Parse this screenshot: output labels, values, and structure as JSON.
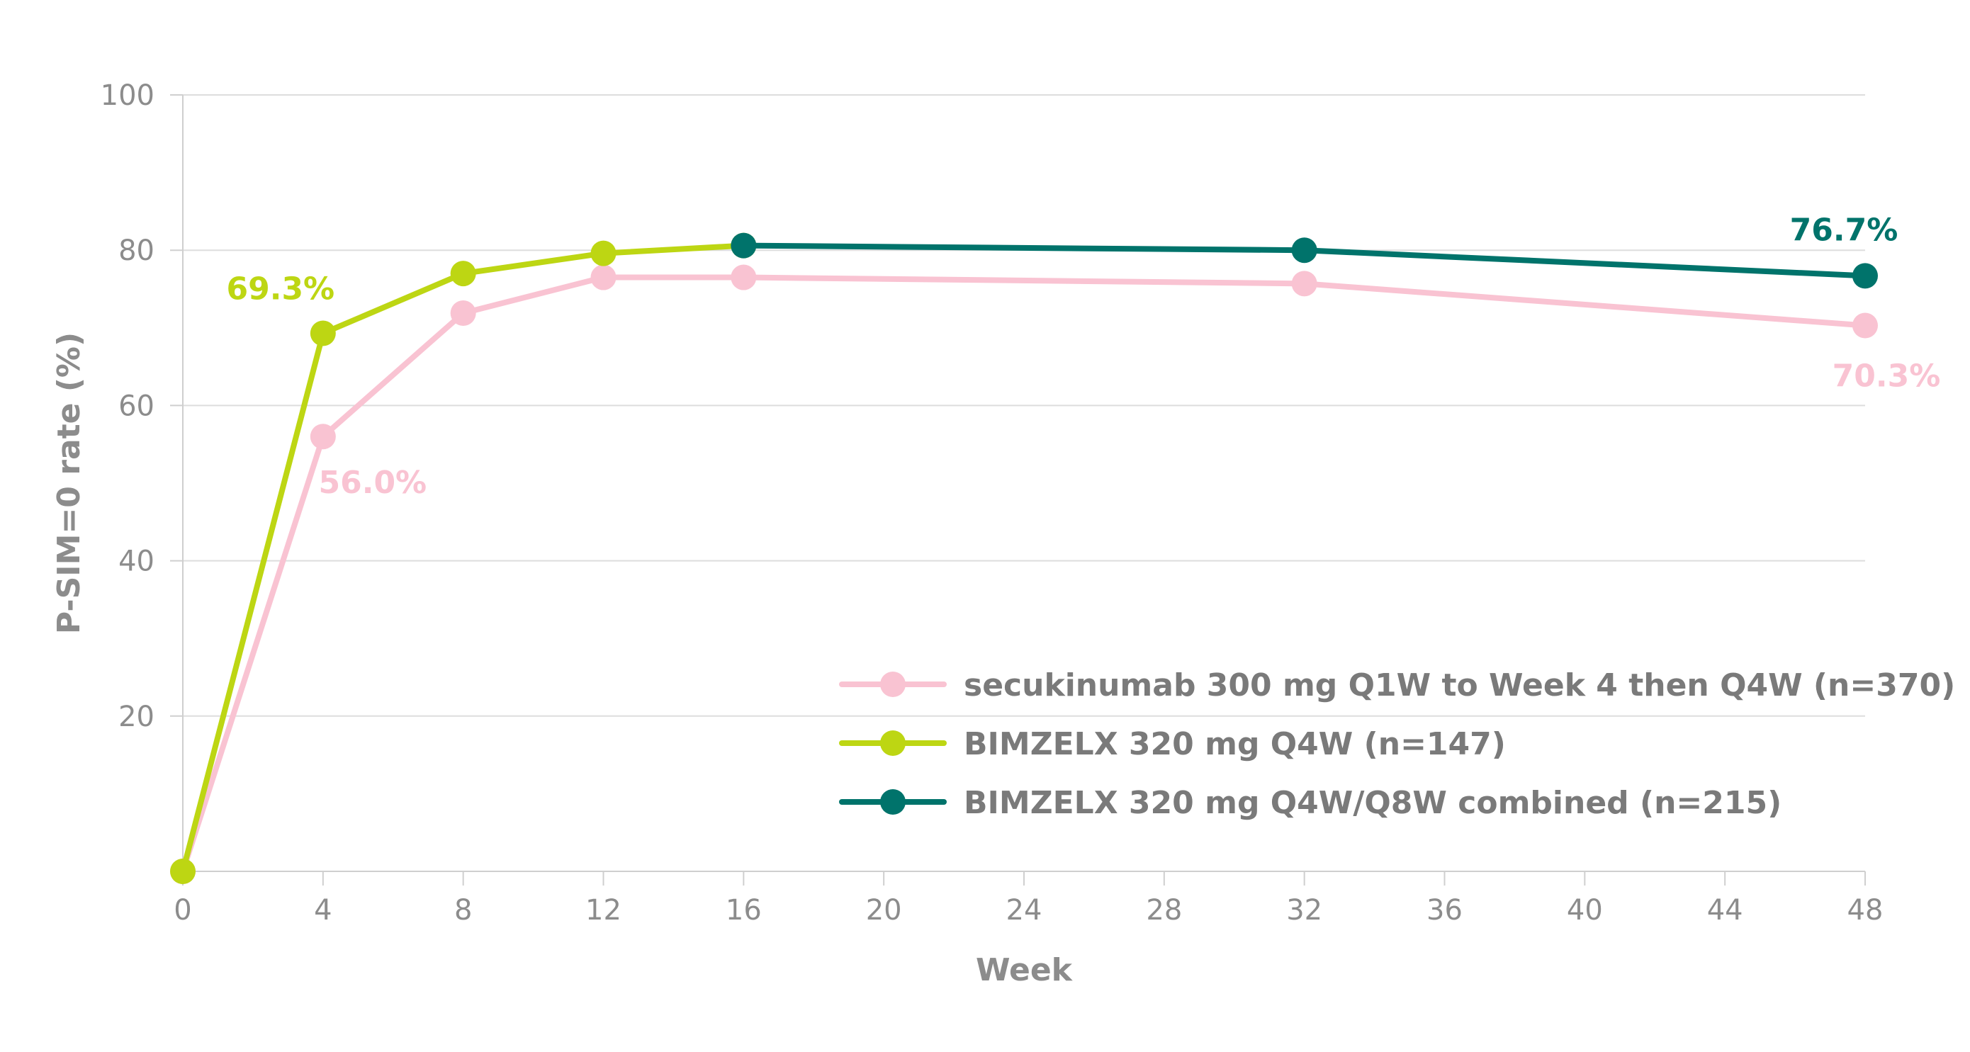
{
  "chart_data": {
    "type": "line",
    "title": "",
    "xlabel": "Week",
    "ylabel": "P-SIM=0 rate (%)",
    "xlim": [
      0,
      48
    ],
    "ylim": [
      0,
      100
    ],
    "x_ticks": [
      0,
      4,
      8,
      12,
      16,
      20,
      24,
      28,
      32,
      36,
      40,
      44,
      48
    ],
    "y_ticks": [
      20,
      40,
      60,
      80,
      100
    ],
    "grid": "horizontal",
    "legend_position": "bottom-right",
    "series": [
      {
        "name": "secukinumab 300 mg Q1W to Week 4 then Q4W (n=370)",
        "color": "#f9c3d2",
        "points": [
          {
            "x": 0,
            "y": 0
          },
          {
            "x": 4,
            "y": 56.0
          },
          {
            "x": 8,
            "y": 71.9
          },
          {
            "x": 12,
            "y": 76.5
          },
          {
            "x": 16,
            "y": 76.5
          },
          {
            "x": 32,
            "y": 75.7
          },
          {
            "x": 48,
            "y": 70.3
          }
        ]
      },
      {
        "name": "BIMZELX 320 mg Q4W (n=147)",
        "color": "#bdd613",
        "points": [
          {
            "x": 0,
            "y": 0
          },
          {
            "x": 4,
            "y": 69.3
          },
          {
            "x": 8,
            "y": 77.0
          },
          {
            "x": 12,
            "y": 79.6
          },
          {
            "x": 16,
            "y": 80.6
          }
        ]
      },
      {
        "name": "BIMZELX 320 mg Q4W/Q8W combined (n=215)",
        "color": "#00736b",
        "points": [
          {
            "x": 16,
            "y": 80.6
          },
          {
            "x": 32,
            "y": 80.0
          },
          {
            "x": 48,
            "y": 76.7
          }
        ]
      }
    ],
    "annotations": [
      {
        "text": "69.3%",
        "x": 4,
        "y": 69.3,
        "color": "#bdd613"
      },
      {
        "text": "56.0%",
        "x": 4,
        "y": 56.0,
        "color": "#f9c3d2"
      },
      {
        "text": "76.7%",
        "x": 48,
        "y": 76.7,
        "color": "#00736b"
      },
      {
        "text": "70.3%",
        "x": 48,
        "y": 70.3,
        "color": "#f9c3d2"
      }
    ],
    "axis_color": "#cfcfcf",
    "grid_color": "#dddddd",
    "text_color": "#8c8c8c"
  }
}
